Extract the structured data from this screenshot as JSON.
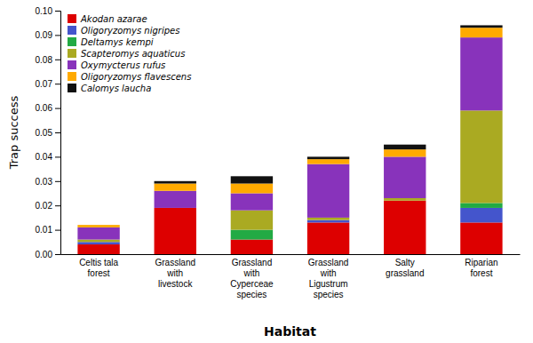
{
  "chart_data": {
    "type": "bar",
    "stacked": true,
    "categories": [
      "Celtis tala\nforest",
      "Grassland\nwith\nlivestock",
      "Grassland\nwith\nCyperceae\nspecies",
      "Grassland\nwith\nLigustrum\nspecies",
      "Salty\ngrassland",
      "Riparian\nforest"
    ],
    "series": [
      {
        "name": "Akodan azarae",
        "color": "#dd0000",
        "values": [
          0.004,
          0.019,
          0.006,
          0.013,
          0.022,
          0.013
        ]
      },
      {
        "name": "Oligoryzomys nigripes",
        "color": "#4455cc",
        "values": [
          0.001,
          0.0,
          0.0,
          0.001,
          0.0,
          0.006
        ]
      },
      {
        "name": "Deltamys kempi",
        "color": "#22aa44",
        "values": [
          0.0,
          0.0,
          0.004,
          0.0,
          0.0,
          0.002
        ]
      },
      {
        "name": "Scapteromys aquaticus",
        "color": "#aaaa22",
        "values": [
          0.001,
          0.0,
          0.008,
          0.001,
          0.001,
          0.038
        ]
      },
      {
        "name": "Oxymycterus rufus",
        "color": "#8833bb",
        "values": [
          0.005,
          0.007,
          0.007,
          0.022,
          0.017,
          0.03
        ]
      },
      {
        "name": "Oligoryzomys flavescens",
        "color": "#ffaa00",
        "values": [
          0.001,
          0.003,
          0.004,
          0.002,
          0.003,
          0.004
        ]
      },
      {
        "name": "Calomys laucha",
        "color": "#111111",
        "values": [
          0.0,
          0.001,
          0.003,
          0.001,
          0.002,
          0.001
        ]
      }
    ],
    "xlabel": "Habitat",
    "ylabel": "Trap success",
    "ylim": [
      0,
      0.1
    ],
    "yticks": [
      {
        "value": 0,
        "label": "0.00"
      },
      {
        "value": 0.01,
        "label": "0.01"
      },
      {
        "value": 0.02,
        "label": "0.02"
      },
      {
        "value": 0.03,
        "label": "0.03"
      },
      {
        "value": 0.04,
        "label": "0.04"
      },
      {
        "value": 0.05,
        "label": "0.05"
      },
      {
        "value": 0.06,
        "label": "0.06"
      },
      {
        "value": 0.07,
        "label": "0.07"
      },
      {
        "value": 0.08,
        "label": "0.08"
      },
      {
        "value": 0.09,
        "label": "0.09"
      },
      {
        "value": 0.1,
        "label": "0.10"
      }
    ],
    "legend": "upper left",
    "grid": false
  }
}
